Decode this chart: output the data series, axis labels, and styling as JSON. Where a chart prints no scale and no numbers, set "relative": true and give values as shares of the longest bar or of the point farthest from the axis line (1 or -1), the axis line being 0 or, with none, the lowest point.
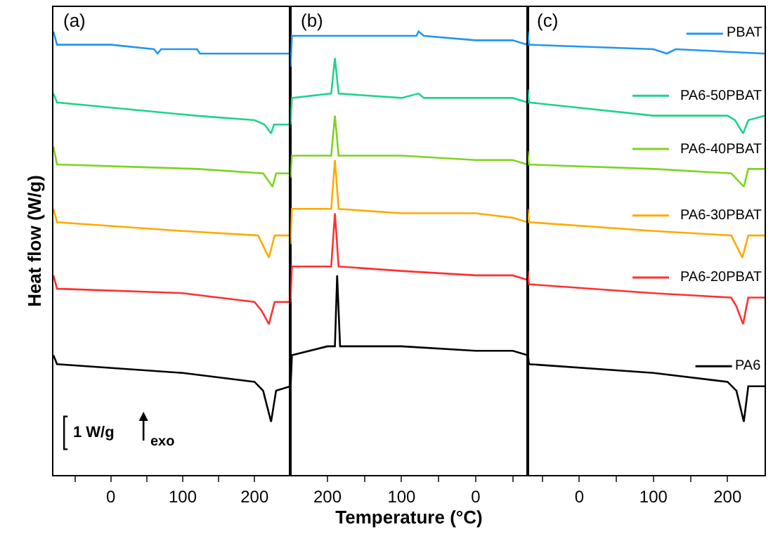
{
  "chart_data": [
    {
      "type": "line",
      "relative": true,
      "ylabel": "Heat flow (W/g)",
      "annotations": [
        "(a)",
        "1 W/g",
        "exo"
      ],
      "xlim": [
        -80,
        250
      ],
      "xticks": [
        {
          "value": -50,
          "label": null
        },
        0,
        {
          "value": 50,
          "label": null
        },
        100,
        {
          "value": 150,
          "label": null
        },
        200
      ],
      "series": [
        {
          "color": "#2196f3",
          "x": [
            -80,
            -75,
            0,
            60,
            65,
            70,
            120,
            124,
            128,
            200,
            250
          ],
          "values": [
            1.0,
            0.97,
            0.97,
            0.96,
            0.95,
            0.96,
            0.96,
            0.95,
            0.95,
            0.95,
            0.95
          ]
        },
        {
          "color": "#1fd38c",
          "x": [
            -80,
            -75,
            118,
            200,
            214,
            223,
            227,
            250
          ],
          "values": [
            0.86,
            0.84,
            0.81,
            0.8,
            0.79,
            0.77,
            0.79,
            0.79
          ]
        },
        {
          "color": "#7ed321",
          "x": [
            -80,
            -75,
            120,
            212,
            225,
            230,
            250
          ],
          "values": [
            0.74,
            0.7,
            0.69,
            0.68,
            0.65,
            0.68,
            0.68
          ]
        },
        {
          "color": "#ffaa00",
          "x": [
            -80,
            -75,
            100,
            205,
            220,
            228,
            250
          ],
          "values": [
            0.6,
            0.57,
            0.55,
            0.54,
            0.49,
            0.54,
            0.54
          ]
        },
        {
          "color": "#ff3030",
          "x": [
            -80,
            -75,
            100,
            200,
            210,
            220,
            228,
            250
          ],
          "values": [
            0.45,
            0.42,
            0.41,
            0.39,
            0.37,
            0.34,
            0.39,
            0.39
          ]
        },
        {
          "color": "#000000",
          "x": [
            -80,
            -75,
            100,
            200,
            212,
            223,
            230,
            250
          ],
          "values": [
            0.27,
            0.25,
            0.23,
            0.21,
            0.19,
            0.12,
            0.19,
            0.2
          ]
        }
      ]
    },
    {
      "type": "line",
      "relative": true,
      "xlabel": "Temperature (°C)",
      "annotations": [
        "(b)"
      ],
      "xlim": [
        250,
        -70
      ],
      "xticks": [
        200,
        {
          "value": 150,
          "label": null
        },
        100,
        {
          "value": 50,
          "label": null
        },
        0,
        {
          "value": -50,
          "label": null
        }
      ],
      "series": [
        {
          "color": "#2196f3",
          "x": [
            250,
            248,
            190,
            100,
            80,
            77,
            70,
            0,
            -50,
            -70
          ],
          "values": [
            0.92,
            0.99,
            0.99,
            0.99,
            0.99,
            1.0,
            0.99,
            0.98,
            0.98,
            0.97
          ]
        },
        {
          "color": "#1fd38c",
          "x": [
            250,
            248,
            195,
            190,
            185,
            100,
            77,
            70,
            0,
            -50,
            -70
          ],
          "values": [
            0.79,
            0.85,
            0.86,
            0.94,
            0.86,
            0.85,
            0.86,
            0.85,
            0.85,
            0.85,
            0.84
          ]
        },
        {
          "color": "#7ed321",
          "x": [
            250,
            248,
            195,
            190,
            185,
            100,
            0,
            -50,
            -70
          ],
          "values": [
            0.67,
            0.72,
            0.72,
            0.81,
            0.72,
            0.72,
            0.71,
            0.71,
            0.7
          ]
        },
        {
          "color": "#ffaa00",
          "x": [
            250,
            248,
            195,
            190,
            185,
            100,
            0,
            -50,
            -70
          ],
          "values": [
            0.52,
            0.6,
            0.6,
            0.71,
            0.6,
            0.59,
            0.59,
            0.58,
            0.57
          ]
        },
        {
          "color": "#ff3030",
          "x": [
            250,
            248,
            195,
            190,
            185,
            100,
            0,
            -50,
            -70
          ],
          "values": [
            0.39,
            0.47,
            0.47,
            0.59,
            0.47,
            0.46,
            0.45,
            0.45,
            0.44
          ]
        },
        {
          "color": "#000000",
          "x": [
            250,
            248,
            200,
            190,
            187,
            183,
            100,
            0,
            -50,
            -70
          ],
          "values": [
            0.19,
            0.27,
            0.29,
            0.29,
            0.45,
            0.29,
            0.29,
            0.28,
            0.28,
            0.27
          ]
        }
      ]
    },
    {
      "type": "line",
      "relative": true,
      "legend": "right",
      "annotations": [
        "(c)"
      ],
      "xlim": [
        -70,
        250
      ],
      "xticks": [
        {
          "value": -50,
          "label": null
        },
        0,
        {
          "value": 50,
          "label": null
        },
        100,
        {
          "value": 150,
          "label": null
        },
        200
      ],
      "series": [
        {
          "name": "PBAT",
          "color": "#2196f3",
          "x": [
            -70,
            -68,
            100,
            118,
            130,
            250
          ],
          "values": [
            1.0,
            0.97,
            0.96,
            0.95,
            0.96,
            0.95
          ]
        },
        {
          "name": "PA6-50PBAT",
          "color": "#1fd38c",
          "x": [
            -70,
            -68,
            100,
            200,
            210,
            221,
            228,
            250
          ],
          "values": [
            0.87,
            0.84,
            0.81,
            0.81,
            0.8,
            0.77,
            0.8,
            0.81
          ]
        },
        {
          "name": "PA6-40PBAT",
          "color": "#7ed321",
          "x": [
            -70,
            -68,
            100,
            205,
            222,
            228,
            250
          ],
          "values": [
            0.73,
            0.7,
            0.69,
            0.68,
            0.65,
            0.69,
            0.69
          ]
        },
        {
          "name": "PA6-30PBAT",
          "color": "#ffaa00",
          "x": [
            -70,
            -68,
            100,
            205,
            220,
            228,
            250
          ],
          "values": [
            0.6,
            0.57,
            0.55,
            0.54,
            0.49,
            0.54,
            0.54
          ]
        },
        {
          "name": "PA6-20PBAT",
          "color": "#ff3030",
          "x": [
            -70,
            -68,
            100,
            205,
            212,
            221,
            228,
            250
          ],
          "values": [
            0.46,
            0.43,
            0.41,
            0.4,
            0.38,
            0.34,
            0.4,
            0.4
          ]
        },
        {
          "name": "PA6",
          "color": "#000000",
          "x": [
            -70,
            -68,
            100,
            200,
            212,
            222,
            228,
            250
          ],
          "values": [
            0.28,
            0.25,
            0.23,
            0.21,
            0.19,
            0.12,
            0.2,
            0.2
          ]
        }
      ]
    }
  ]
}
